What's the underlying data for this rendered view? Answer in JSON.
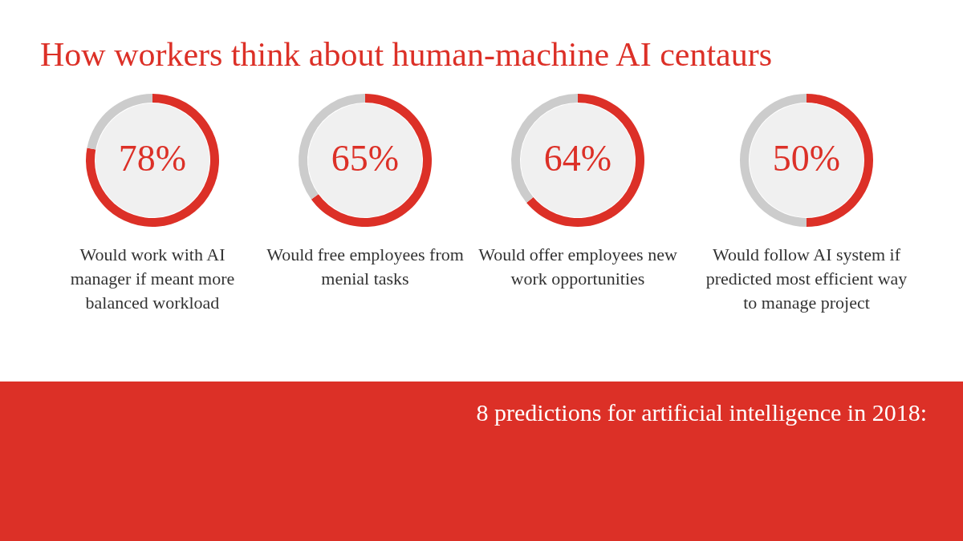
{
  "chart_data": [
    {
      "type": "donut",
      "title": "How workers think about human-machine AI centaurs",
      "xlabel": "Would work with AI manager if meant more balanced workload",
      "categories": [
        null,
        null
      ],
      "values": [
        78,
        22
      ],
      "colors": [
        "#dc3027",
        "#cccccc"
      ],
      "value_labels": [
        "78%",
        null
      ]
    },
    {
      "type": "donut",
      "xlabel": "Would free employees from menial tasks",
      "categories": [
        null,
        null
      ],
      "values": [
        65,
        35
      ],
      "colors": [
        "#dc3027",
        "#cccccc"
      ],
      "value_labels": [
        "65%",
        null
      ]
    },
    {
      "type": "donut",
      "xlabel": "Would offer employees new work opportunities",
      "categories": [
        null,
        null
      ],
      "values": [
        64,
        36
      ],
      "colors": [
        "#dc3027",
        "#cccccc"
      ],
      "value_labels": [
        "64%",
        null
      ]
    },
    {
      "type": "donut",
      "xlabel": "Would follow AI system if predicted most efficient way to manage project",
      "categories": [
        null,
        null
      ],
      "values": [
        50,
        50
      ],
      "colors": [
        "#dc3027",
        "#cccccc"
      ],
      "value_labels": [
        "50%",
        null
      ],
      "annotations": [
        "8 predictions for artificial intelligence in 2018:"
      ]
    }
  ]
}
